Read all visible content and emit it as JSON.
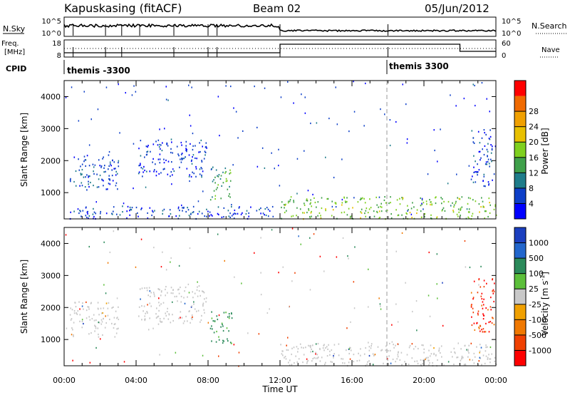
{
  "header": {
    "station": "Kapuskasing (fitACF)",
    "beam": "Beam 02",
    "date": "05/Jun/2012"
  },
  "summary_panel": {
    "nsky_label": "N.Sky",
    "nsky_ticks": [
      "10^5",
      "10^0"
    ],
    "nsearch_label": "N.Search",
    "nsearch_ticks": [
      "10^5",
      "10^0"
    ],
    "freq_label": "Freq.",
    "freq_unit": "[MHz]",
    "freq_ticks": [
      "18",
      "8"
    ],
    "nave_label": "Nave",
    "nave_ticks": [
      "60",
      "0"
    ],
    "cpid_label": "CPID",
    "cpid_segments": [
      {
        "label": "themis -3300",
        "start_hour": 0
      },
      {
        "label": "themis 3300",
        "start_hour": 18
      }
    ]
  },
  "chart_data": [
    {
      "type": "heatmap",
      "title": "",
      "xlabel": "Time UT",
      "ylabel": "Slant Range [km]",
      "x_ticks": [
        "00:00",
        "04:00",
        "08:00",
        "12:00",
        "16:00",
        "20:00",
        "00:00"
      ],
      "xlim_hours": [
        0,
        24
      ],
      "y_ticks": [
        1000,
        2000,
        3000,
        4000
      ],
      "ylim": [
        180,
        4500
      ],
      "colorbar": {
        "label": "Power [dB]",
        "ticks": [
          4,
          8,
          12,
          16,
          20,
          24,
          28
        ],
        "colors": [
          "#0000ff",
          "#0d3fc8",
          "#1e7c8a",
          "#3fa04a",
          "#7fd01f",
          "#e8c000",
          "#f0a000",
          "#f06a00",
          "#ff0000"
        ]
      },
      "regions": [
        {
          "hours": [
            0.3,
            3.0
          ],
          "range_km": [
            1100,
            2200
          ],
          "value_db": 6
        },
        {
          "hours": [
            4.1,
            7.9
          ],
          "range_km": [
            1500,
            2700
          ],
          "value_db": 5
        },
        {
          "hours": [
            8.1,
            9.3
          ],
          "range_km": [
            800,
            1900
          ],
          "value_db": 14
        },
        {
          "hours": [
            0.3,
            11.9
          ],
          "range_km": [
            200,
            600
          ],
          "value_db": 6
        },
        {
          "hours": [
            12.0,
            24.0
          ],
          "range_km": [
            200,
            900
          ],
          "value_db": 17
        },
        {
          "hours": [
            22.6,
            23.9
          ],
          "range_km": [
            1200,
            3000
          ],
          "value_db": 6
        }
      ]
    },
    {
      "type": "heatmap",
      "title": "",
      "xlabel": "Time UT",
      "ylabel": "Slant Range [km]",
      "x_ticks": [
        "00:00",
        "04:00",
        "08:00",
        "12:00",
        "16:00",
        "20:00",
        "00:00"
      ],
      "xlim_hours": [
        0,
        24
      ],
      "y_ticks": [
        1000,
        2000,
        3000,
        4000
      ],
      "ylim": [
        180,
        4500
      ],
      "colorbar": {
        "label": "Velocity [m s",
        "label_sup": "-1",
        "label_end": "]",
        "ticks": [
          "1000",
          "500",
          "100",
          "25",
          "-25",
          "-100",
          "-500",
          "-1000"
        ],
        "colors": [
          "#1b3fbf",
          "#2266cc",
          "#2b8a5a",
          "#5cbf3a",
          "#c8c8c8",
          "#f0a000",
          "#f07800",
          "#f04000",
          "#ff0000"
        ]
      },
      "regions": [
        {
          "hours": [
            0.3,
            3.0
          ],
          "range_km": [
            1100,
            2200
          ],
          "value_ms": 0
        },
        {
          "hours": [
            4.1,
            7.9
          ],
          "range_km": [
            1500,
            2700
          ],
          "value_ms": 0
        },
        {
          "hours": [
            8.1,
            9.3
          ],
          "range_km": [
            800,
            1900
          ],
          "value_ms": 200
        },
        {
          "hours": [
            12.0,
            24.0
          ],
          "range_km": [
            200,
            900
          ],
          "value_ms": 0
        },
        {
          "hours": [
            22.6,
            23.9
          ],
          "range_km": [
            1200,
            3000
          ],
          "value_ms": -700
        }
      ]
    }
  ]
}
